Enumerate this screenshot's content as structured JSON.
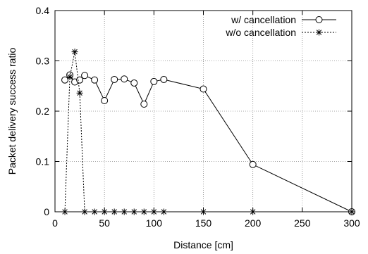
{
  "chart_data": {
    "type": "line",
    "xlabel": "Distance [cm]",
    "ylabel": "Packet delivery success ratio",
    "xlim": [
      0,
      300
    ],
    "ylim": [
      0,
      0.4
    ],
    "xticks": [
      "0",
      "50",
      "100",
      "150",
      "200",
      "250",
      "300"
    ],
    "yticks": [
      "0",
      "0.1",
      "0.2",
      "0.3",
      "0.4"
    ],
    "grid": true,
    "legend_position": "top-right",
    "series": [
      {
        "name": "w/ cancellation",
        "marker": "circle",
        "line_style": "solid",
        "color": "#000000",
        "x": [
          10,
          15,
          20,
          25,
          30,
          40,
          50,
          60,
          70,
          80,
          90,
          100,
          110,
          150,
          200,
          300
        ],
        "y": [
          0.262,
          0.272,
          0.258,
          0.262,
          0.271,
          0.262,
          0.221,
          0.263,
          0.264,
          0.256,
          0.214,
          0.259,
          0.263,
          0.244,
          0.094,
          0.0
        ]
      },
      {
        "name": "w/o cancellation",
        "marker": "asterisk",
        "line_style": "dotted",
        "color": "#000000",
        "x": [
          10,
          15,
          20,
          25,
          30,
          40,
          50,
          60,
          70,
          80,
          90,
          100,
          110,
          150,
          200,
          300
        ],
        "y": [
          0.0,
          0.268,
          0.318,
          0.236,
          0.0,
          0.0,
          0.0,
          0.0,
          0.0,
          0.0,
          0.0,
          0.0,
          0.0,
          0.0,
          0.0,
          0.0
        ]
      }
    ]
  }
}
